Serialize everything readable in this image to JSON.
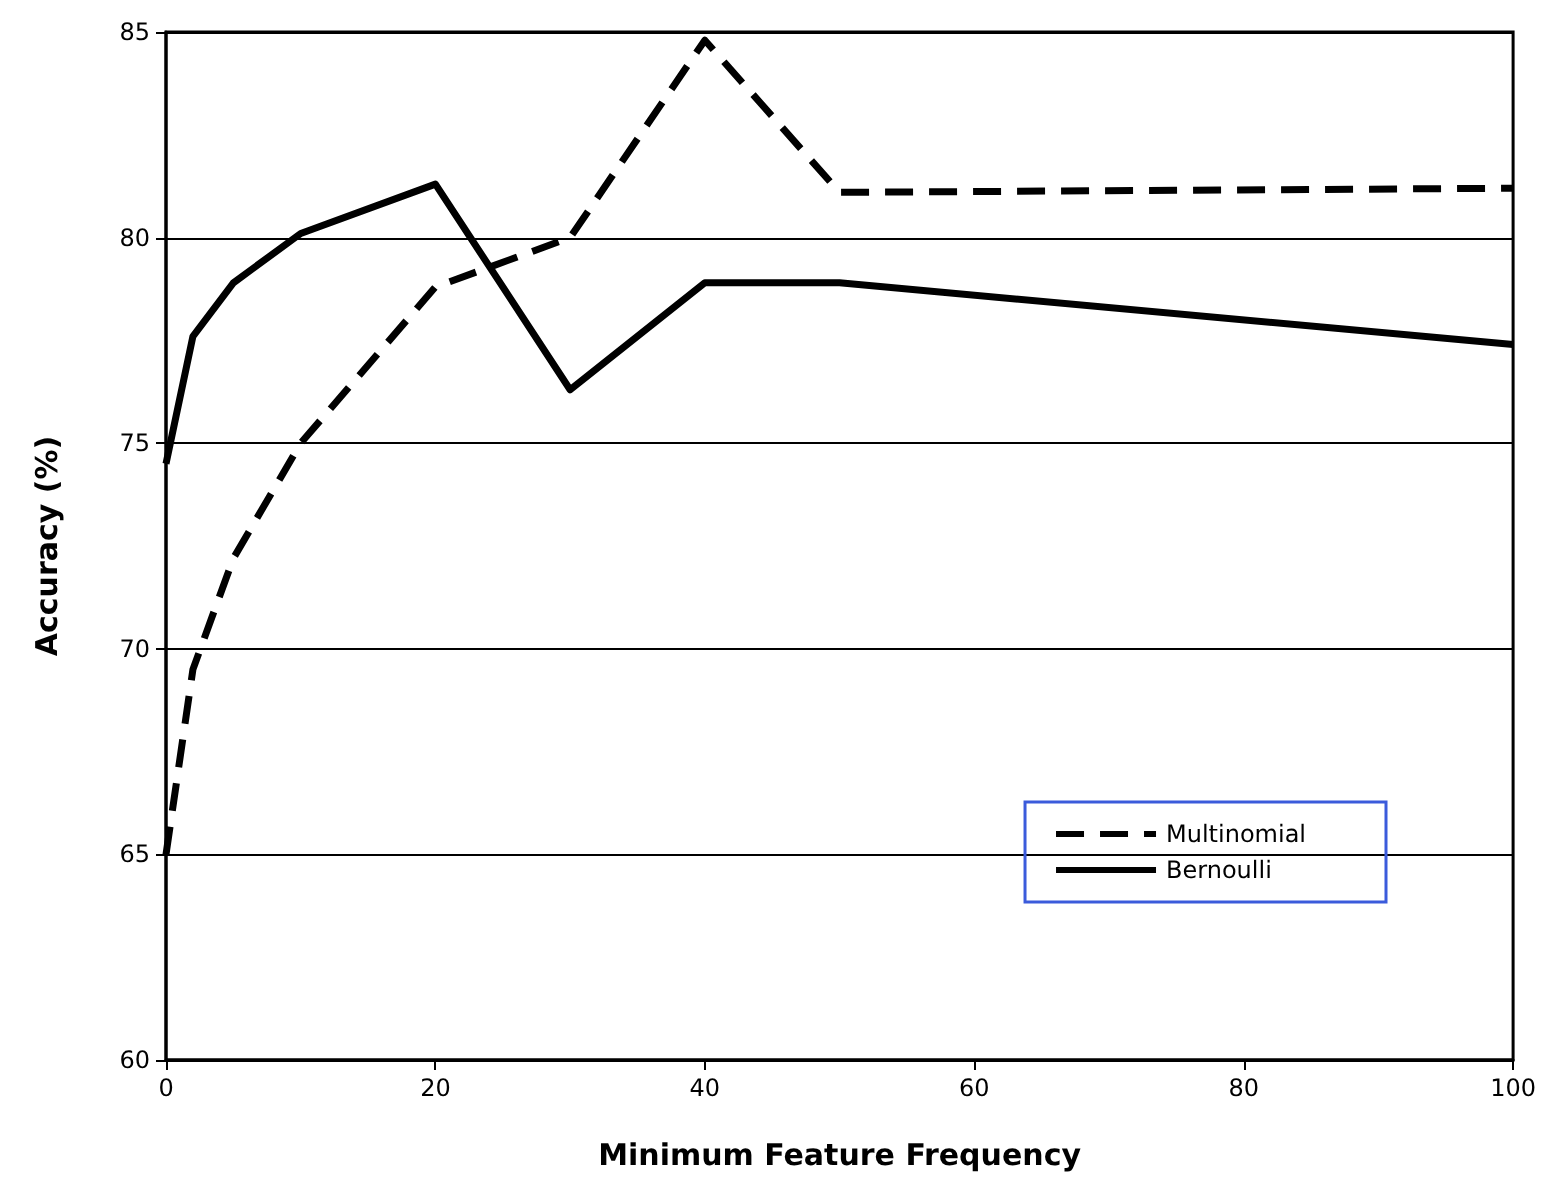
{
  "chart_data": {
    "type": "line",
    "xlabel": "Minimum Feature Frequency",
    "ylabel": "Accuracy (%)",
    "xlim": [
      0,
      100
    ],
    "xticks": [
      0,
      20,
      40,
      60,
      80,
      100
    ],
    "ylim": [
      60,
      85
    ],
    "yticks": [
      60,
      65,
      70,
      75,
      80,
      85
    ],
    "grid": "y",
    "legend": "bottom right",
    "marker": "none",
    "series": [
      {
        "name": "Multinomial",
        "color": "#000000",
        "line_style": "dashed",
        "x": [
          0,
          2,
          5,
          10,
          20,
          30,
          40,
          50,
          100
        ],
        "values": [
          65.0,
          69.5,
          72.2,
          75.0,
          78.8,
          80.0,
          84.8,
          81.1,
          81.2
        ]
      },
      {
        "name": "Bernoulli",
        "color": "#000000",
        "line_style": "solid",
        "x": [
          0,
          2,
          5,
          10,
          20,
          30,
          40,
          50,
          100
        ],
        "values": [
          74.5,
          77.6,
          78.9,
          80.1,
          81.3,
          76.3,
          78.9,
          78.9,
          77.4
        ]
      }
    ]
  }
}
